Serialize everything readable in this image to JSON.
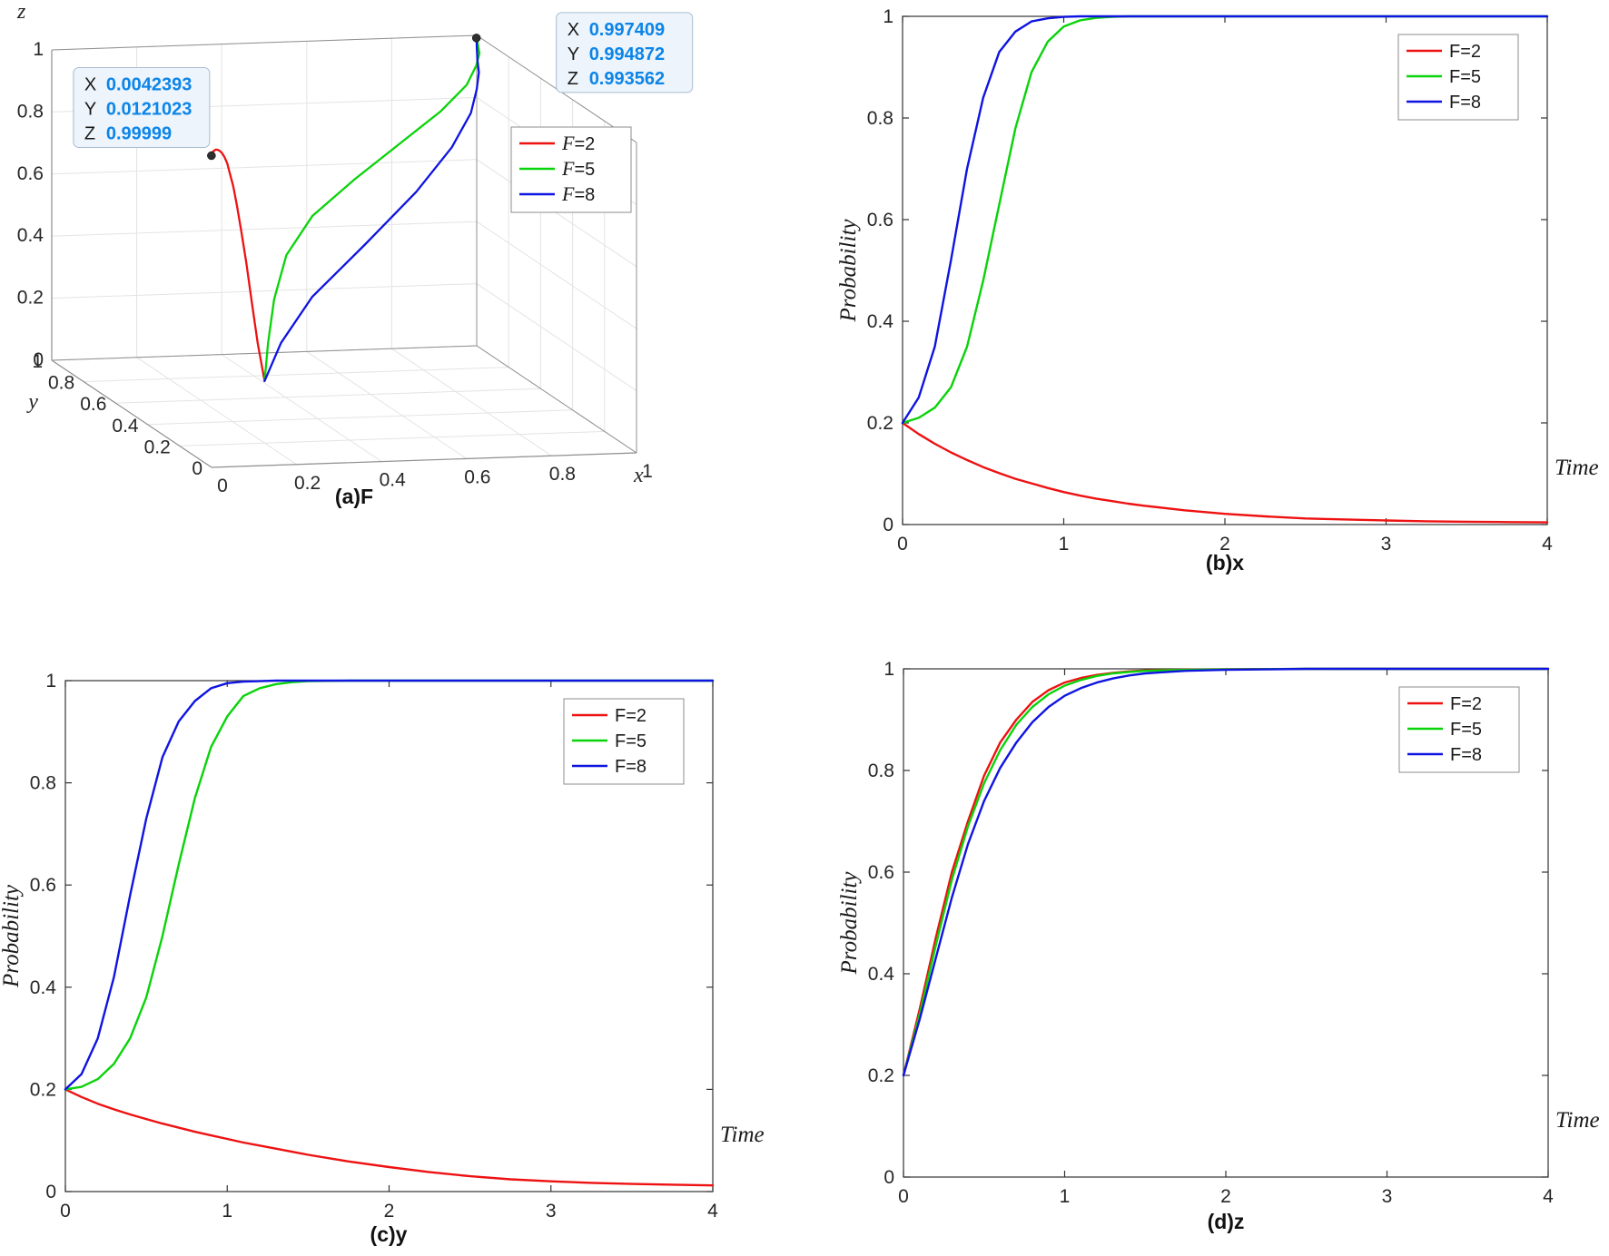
{
  "figure": {
    "background": "#ffffff"
  },
  "colors": {
    "red": "#ee1111",
    "green": "#09d309",
    "blue": "#0f14e0",
    "axis_2d": "#333333",
    "axis_3d": "#8f8f8f",
    "grid_3d": "#e4e4e4",
    "tick_text": "#262626",
    "legend_border": "#8c8c8c",
    "datatip_bg": "#edf4fb",
    "datatip_border": "#a8bdd0",
    "datatip_value": "#0d85e8",
    "datatip_label": "#1a1a1a",
    "marker": "#2f2f2f"
  },
  "chart_data": [
    {
      "id": "a",
      "type": "line3d",
      "caption": "(a)F",
      "xlabel": "x",
      "ylabel": "y",
      "zlabel": "z",
      "xlim": [
        0,
        1
      ],
      "ylim": [
        0,
        1
      ],
      "zlim": [
        0,
        1
      ],
      "xticks": [
        0,
        0.2,
        0.4,
        0.6,
        0.8,
        1
      ],
      "yticks": [
        0,
        0.2,
        0.4,
        0.6,
        0.8,
        1
      ],
      "zticks": [
        0,
        0.2,
        0.4,
        0.6,
        0.8,
        1
      ],
      "legend": [
        "F=2",
        "F=5",
        "F=8"
      ],
      "legend_position": "top-right",
      "grid": true,
      "series": [
        {
          "name": "F=2",
          "color": "#ee1111",
          "points": [
            [
              0.2,
              0.2,
              0.2
            ],
            [
              0.178,
              0.185,
              0.33
            ],
            [
              0.159,
              0.172,
              0.47
            ],
            [
              0.142,
              0.161,
              0.6
            ],
            [
              0.127,
              0.151,
              0.7
            ],
            [
              0.113,
              0.142,
              0.79
            ],
            [
              0.101,
              0.133,
              0.855
            ],
            [
              0.09,
              0.125,
              0.9
            ],
            [
              0.081,
              0.117,
              0.935
            ],
            [
              0.072,
              0.11,
              0.958
            ],
            [
              0.064,
              0.103,
              0.973
            ],
            [
              0.057,
              0.096,
              0.982
            ],
            [
              0.051,
              0.09,
              0.988
            ],
            [
              0.046,
              0.084,
              0.992
            ],
            [
              0.041,
              0.078,
              0.995
            ],
            [
              0.037,
              0.072,
              0.997
            ],
            [
              0.028,
              0.059,
              0.9985
            ],
            [
              0.021,
              0.048,
              0.9993
            ],
            [
              0.016,
              0.038,
              0.9997
            ],
            [
              0.012,
              0.03,
              0.9999
            ],
            [
              0.008,
              0.02,
              0.99995
            ],
            [
              0.0042393,
              0.0121023,
              0.99999
            ]
          ]
        },
        {
          "name": "F=5",
          "color": "#09d309",
          "points": [
            [
              0.2,
              0.2,
              0.2
            ],
            [
              0.21,
              0.205,
              0.32
            ],
            [
              0.23,
              0.22,
              0.455
            ],
            [
              0.27,
              0.25,
              0.585
            ],
            [
              0.35,
              0.3,
              0.69
            ],
            [
              0.48,
              0.38,
              0.775
            ],
            [
              0.63,
              0.5,
              0.84
            ],
            [
              0.78,
              0.64,
              0.89
            ],
            [
              0.89,
              0.77,
              0.925
            ],
            [
              0.95,
              0.87,
              0.95
            ],
            [
              0.98,
              0.93,
              0.967
            ],
            [
              0.992,
              0.97,
              0.978
            ],
            [
              0.996,
              0.985,
              0.986
            ],
            [
              0.997,
              0.991,
              0.99
            ],
            [
              0.9974,
              0.994,
              0.9925
            ],
            [
              0.997409,
              0.994872,
              0.993562
            ]
          ]
        },
        {
          "name": "F=8",
          "color": "#0f14e0",
          "points": [
            [
              0.2,
              0.2,
              0.2
            ],
            [
              0.25,
              0.23,
              0.31
            ],
            [
              0.35,
              0.3,
              0.43
            ],
            [
              0.52,
              0.42,
              0.55
            ],
            [
              0.7,
              0.58,
              0.655
            ],
            [
              0.84,
              0.73,
              0.74
            ],
            [
              0.93,
              0.85,
              0.805
            ],
            [
              0.97,
              0.92,
              0.855
            ],
            [
              0.99,
              0.96,
              0.895
            ],
            [
              0.996,
              0.985,
              0.925
            ],
            [
              0.999,
              0.995,
              0.947
            ],
            [
              0.9995,
              0.998,
              0.962
            ],
            [
              0.9997,
              0.999,
              0.973
            ],
            [
              0.9998,
              0.9995,
              0.981
            ],
            [
              0.9999,
              0.9998,
              0.987
            ],
            [
              1,
              1,
              0.991
            ],
            [
              1,
              1,
              0.996
            ],
            [
              1,
              1,
              1
            ]
          ]
        }
      ],
      "datatips": [
        {
          "point": [
            0.0042393,
            0.0121023,
            0.99999
          ],
          "rows": [
            [
              "X",
              "0.0042393"
            ],
            [
              "Y",
              "0.0121023"
            ],
            [
              "Z",
              "0.99999"
            ]
          ],
          "offset": [
            -152,
            -97
          ]
        },
        {
          "point": [
            0.997409,
            0.994872,
            0.993562
          ],
          "rows": [
            [
              "X",
              "0.997409"
            ],
            [
              "Y",
              "0.994872"
            ],
            [
              "Z",
              "0.993562"
            ]
          ],
          "offset": [
            88,
            -28
          ]
        }
      ]
    },
    {
      "id": "b",
      "type": "line",
      "caption": "(b)x",
      "xlabel": "Time",
      "ylabel": "Probability",
      "xlim": [
        0,
        4
      ],
      "ylim": [
        0,
        1
      ],
      "xticks": [
        0,
        1,
        2,
        3,
        4
      ],
      "yticks": [
        0,
        0.2,
        0.4,
        0.6,
        0.8,
        1
      ],
      "grid": false,
      "legend": [
        "F=2",
        "F=5",
        "F=8"
      ],
      "legend_position": "top-right",
      "x": [
        0,
        0.1,
        0.2,
        0.3,
        0.4,
        0.5,
        0.6,
        0.7,
        0.8,
        0.9,
        1,
        1.1,
        1.2,
        1.3,
        1.4,
        1.5,
        1.75,
        2,
        2.25,
        2.5,
        2.75,
        3,
        3.25,
        3.5,
        3.75,
        4
      ],
      "series": [
        {
          "name": "F=2",
          "color": "#ee1111",
          "values": [
            0.2,
            0.178,
            0.159,
            0.142,
            0.127,
            0.113,
            0.101,
            0.09,
            0.081,
            0.072,
            0.064,
            0.057,
            0.051,
            0.046,
            0.041,
            0.037,
            0.028,
            0.021,
            0.016,
            0.012,
            0.01,
            0.008,
            0.0065,
            0.0055,
            0.0048,
            0.0042
          ]
        },
        {
          "name": "F=5",
          "color": "#09d309",
          "values": [
            0.2,
            0.21,
            0.23,
            0.27,
            0.35,
            0.48,
            0.63,
            0.78,
            0.89,
            0.95,
            0.98,
            0.992,
            0.997,
            0.999,
            1,
            1,
            1,
            1,
            1,
            1,
            1,
            1,
            1,
            1,
            1,
            1
          ]
        },
        {
          "name": "F=8",
          "color": "#0f14e0",
          "values": [
            0.2,
            0.25,
            0.35,
            0.52,
            0.7,
            0.84,
            0.93,
            0.97,
            0.99,
            0.996,
            0.999,
            1,
            1,
            1,
            1,
            1,
            1,
            1,
            1,
            1,
            1,
            1,
            1,
            1,
            1,
            1
          ]
        }
      ]
    },
    {
      "id": "c",
      "type": "line",
      "caption": "(c)y",
      "xlabel": "Time",
      "ylabel": "Probability",
      "xlim": [
        0,
        4
      ],
      "ylim": [
        0,
        1
      ],
      "xticks": [
        0,
        1,
        2,
        3,
        4
      ],
      "yticks": [
        0,
        0.2,
        0.4,
        0.6,
        0.8,
        1
      ],
      "grid": false,
      "legend": [
        "F=2",
        "F=5",
        "F=8"
      ],
      "legend_position": "top-right",
      "x": [
        0,
        0.1,
        0.2,
        0.3,
        0.4,
        0.5,
        0.6,
        0.7,
        0.8,
        0.9,
        1,
        1.1,
        1.2,
        1.3,
        1.4,
        1.5,
        1.75,
        2,
        2.25,
        2.5,
        2.75,
        3,
        3.25,
        3.5,
        3.75,
        4
      ],
      "series": [
        {
          "name": "F=2",
          "color": "#ee1111",
          "values": [
            0.2,
            0.185,
            0.172,
            0.161,
            0.151,
            0.142,
            0.133,
            0.125,
            0.117,
            0.11,
            0.103,
            0.096,
            0.09,
            0.084,
            0.078,
            0.072,
            0.059,
            0.048,
            0.038,
            0.03,
            0.024,
            0.02,
            0.017,
            0.015,
            0.0135,
            0.0121
          ]
        },
        {
          "name": "F=5",
          "color": "#09d309",
          "values": [
            0.2,
            0.205,
            0.22,
            0.25,
            0.3,
            0.38,
            0.5,
            0.64,
            0.77,
            0.87,
            0.93,
            0.97,
            0.985,
            0.993,
            0.997,
            0.999,
            1,
            1,
            1,
            1,
            1,
            1,
            1,
            1,
            1,
            1
          ]
        },
        {
          "name": "F=8",
          "color": "#0f14e0",
          "values": [
            0.2,
            0.23,
            0.3,
            0.42,
            0.58,
            0.73,
            0.85,
            0.92,
            0.96,
            0.985,
            0.995,
            0.998,
            0.999,
            1,
            1,
            1,
            1,
            1,
            1,
            1,
            1,
            1,
            1,
            1,
            1,
            1
          ]
        }
      ]
    },
    {
      "id": "d",
      "type": "line",
      "caption": "(d)z",
      "xlabel": "Time",
      "ylabel": "Probability",
      "xlim": [
        0,
        4
      ],
      "ylim": [
        0,
        1
      ],
      "xticks": [
        0,
        1,
        2,
        3,
        4
      ],
      "yticks": [
        0,
        0.2,
        0.4,
        0.6,
        0.8,
        1
      ],
      "grid": false,
      "legend": [
        "F=2",
        "F=5",
        "F=8"
      ],
      "legend_position": "top-right",
      "x": [
        0,
        0.1,
        0.2,
        0.3,
        0.4,
        0.5,
        0.6,
        0.7,
        0.8,
        0.9,
        1,
        1.1,
        1.2,
        1.3,
        1.4,
        1.5,
        1.75,
        2,
        2.25,
        2.5,
        2.75,
        3,
        3.25,
        3.5,
        3.75,
        4
      ],
      "series": [
        {
          "name": "F=2",
          "color": "#ee1111",
          "values": [
            0.2,
            0.33,
            0.47,
            0.6,
            0.7,
            0.79,
            0.855,
            0.9,
            0.935,
            0.958,
            0.973,
            0.982,
            0.988,
            0.992,
            0.995,
            0.997,
            0.9985,
            0.9993,
            0.9997,
            0.9999,
            1,
            1,
            1,
            1,
            1,
            1
          ]
        },
        {
          "name": "F=5",
          "color": "#09d309",
          "values": [
            0.2,
            0.32,
            0.455,
            0.585,
            0.69,
            0.775,
            0.84,
            0.89,
            0.925,
            0.95,
            0.967,
            0.978,
            0.986,
            0.991,
            0.994,
            0.996,
            0.998,
            0.999,
            0.9995,
            1,
            1,
            1,
            1,
            1,
            1,
            1
          ]
        },
        {
          "name": "F=8",
          "color": "#0f14e0",
          "values": [
            0.2,
            0.31,
            0.43,
            0.55,
            0.655,
            0.74,
            0.805,
            0.855,
            0.895,
            0.925,
            0.947,
            0.962,
            0.973,
            0.981,
            0.987,
            0.991,
            0.996,
            0.998,
            0.999,
            1,
            1,
            1,
            1,
            1,
            1,
            1
          ]
        }
      ]
    }
  ]
}
